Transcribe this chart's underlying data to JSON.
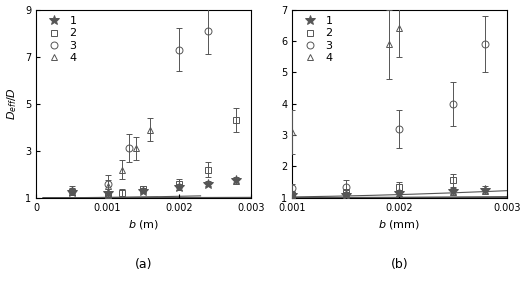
{
  "panel_a": {
    "xlim": [
      0,
      0.003
    ],
    "ylim": [
      1,
      9
    ],
    "xlabel": "$b$ (m)",
    "ylabel": "$D_{eff}/D$",
    "yticks": [
      1,
      3,
      5,
      7,
      9
    ],
    "xticks": [
      0,
      0.001,
      0.002,
      0.003
    ],
    "xticklabels": [
      "0",
      "0.001",
      "0.002",
      "0.003"
    ],
    "series": {
      "1_star": {
        "x": [
          0.0005,
          0.001,
          0.0015,
          0.002,
          0.0024,
          0.0028
        ],
        "y": [
          1.25,
          1.2,
          1.3,
          1.45,
          1.6,
          1.75
        ],
        "yerr": [
          0.12,
          0.1,
          0.1,
          0.12,
          0.12,
          0.15
        ]
      },
      "2_square": {
        "x": [
          0.001,
          0.0012,
          0.0015,
          0.002,
          0.0024,
          0.0028
        ],
        "y": [
          1.1,
          1.2,
          1.35,
          1.6,
          2.2,
          4.3
        ],
        "yerr": [
          0.12,
          0.15,
          0.15,
          0.2,
          0.3,
          0.5
        ]
      },
      "3_circle": {
        "x": [
          0.0005,
          0.001,
          0.0013,
          0.002,
          0.0024
        ],
        "y": [
          1.3,
          1.6,
          3.1,
          7.3,
          8.1
        ],
        "yerr": [
          0.2,
          0.35,
          0.6,
          0.9,
          1.0
        ]
      },
      "4_triangle": {
        "x": [
          0.0005,
          0.001,
          0.0012,
          0.0014,
          0.0016
        ],
        "y": [
          1.25,
          1.5,
          2.2,
          3.1,
          3.9
        ],
        "yerr": [
          0.15,
          0.25,
          0.4,
          0.5,
          0.5
        ]
      }
    },
    "fit_curves": {
      "1_star": {
        "a": 1.0,
        "b": 280.0,
        "xstart": 0.0001,
        "xend": 0.003
      },
      "2_square": {
        "a": 1.0,
        "b": 1800.0,
        "xstart": 0.0001,
        "xend": 0.003
      },
      "3_circle": {
        "a": 1.0,
        "b": 15000.0,
        "xstart": 0.0001,
        "xend": 0.0023
      },
      "4_triangle": {
        "a": 1.0,
        "b": 8000.0,
        "xstart": 0.0007,
        "xend": 0.0017
      }
    }
  },
  "panel_b": {
    "xlim": [
      0.001,
      0.003
    ],
    "ylim": [
      1,
      7
    ],
    "xlabel": "$b$ (mm)",
    "ylabel": "$D_{eff}/D$",
    "yticks": [
      1,
      2,
      3,
      4,
      5,
      6,
      7
    ],
    "xticks": [
      0.001,
      0.002,
      0.003
    ],
    "xticklabels": [
      "0.001",
      "0.002",
      "0.003"
    ],
    "series": {
      "1_star": {
        "x": [
          0.001,
          0.0015,
          0.002,
          0.0025,
          0.0028
        ],
        "y": [
          1.1,
          1.1,
          1.15,
          1.2,
          1.25
        ],
        "yerr": [
          0.08,
          0.08,
          0.1,
          0.1,
          0.12
        ]
      },
      "2_square": {
        "x": [
          0.001,
          0.0015,
          0.002,
          0.0025
        ],
        "y": [
          1.1,
          1.15,
          1.35,
          1.55
        ],
        "yerr": [
          0.1,
          0.12,
          0.15,
          0.2
        ]
      },
      "3_circle": {
        "x": [
          0.001,
          0.0015,
          0.002,
          0.0025,
          0.0028
        ],
        "y": [
          1.3,
          1.35,
          3.2,
          4.0,
          5.9
        ],
        "yerr": [
          0.15,
          0.2,
          0.6,
          0.7,
          0.9
        ]
      },
      "4_triangle": {
        "x": [
          0.001,
          0.0019,
          0.002
        ],
        "y": [
          3.1,
          5.9,
          6.4
        ],
        "yerr": [
          0.7,
          1.1,
          0.9
        ]
      }
    },
    "fit_curves": {
      "1_star": {
        "a": 1.0,
        "b": 100.0,
        "xstart": 0.001,
        "xend": 0.003
      },
      "2_square": {
        "a": 1.0,
        "b": 500.0,
        "xstart": 0.001,
        "xend": 0.003
      },
      "3_circle": {
        "a": 1.0,
        "b": 4000.0,
        "xstart": 0.001,
        "xend": 0.003
      },
      "4_triangle": {
        "a": 1.0,
        "b": 25000.0,
        "xstart": 0.001,
        "xend": 0.003
      }
    }
  },
  "marker_color": "#555555",
  "line_color": "#555555",
  "label_fontsize": 8,
  "tick_fontsize": 7,
  "legend_fontsize": 8
}
